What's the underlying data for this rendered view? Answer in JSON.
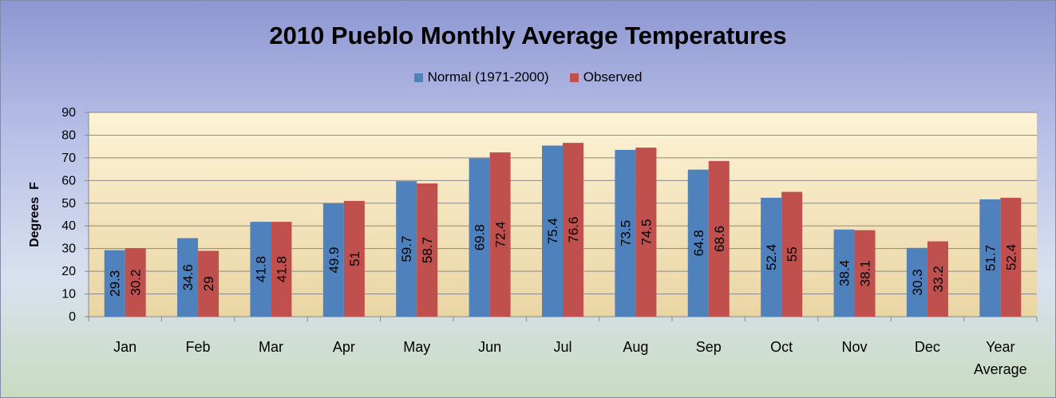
{
  "chart_data": {
    "type": "bar",
    "title": "2010 Pueblo Monthly Average Temperatures",
    "xlabel": "",
    "ylabel": "Degrees  F",
    "ylim": [
      0,
      90
    ],
    "yticks": [
      0,
      10,
      20,
      30,
      40,
      50,
      60,
      70,
      80,
      90
    ],
    "grid": true,
    "legend_position": "top-center",
    "categories": [
      "Jan",
      "Feb",
      "Mar",
      "Apr",
      "May",
      "Jun",
      "Jul",
      "Aug",
      "Sep",
      "Oct",
      "Nov",
      "Dec",
      "Year Average"
    ],
    "series": [
      {
        "name": "Normal (1971-2000)",
        "color": "#4f81bd",
        "values": [
          29.3,
          34.6,
          41.8,
          49.9,
          59.7,
          69.8,
          75.4,
          73.5,
          64.8,
          52.4,
          38.4,
          30.3,
          51.7
        ],
        "labels": [
          "29.3",
          "34.6",
          "41.8",
          "49.9",
          "59.7",
          "69.8",
          "75.4",
          "73.5",
          "64.8",
          "52.4",
          "38.4",
          "30.3",
          "51.7"
        ]
      },
      {
        "name": "Observed",
        "color": "#c0504d",
        "values": [
          30.2,
          29,
          41.8,
          51,
          58.7,
          72.4,
          76.6,
          74.5,
          68.6,
          55,
          38.1,
          33.2,
          52.4
        ],
        "labels": [
          "30.2",
          "29",
          "41.8",
          "51",
          "58.7",
          "72.4",
          "76.6",
          "74.5",
          "68.6",
          "55",
          "38.1",
          "33.2",
          "52.4"
        ]
      }
    ]
  }
}
